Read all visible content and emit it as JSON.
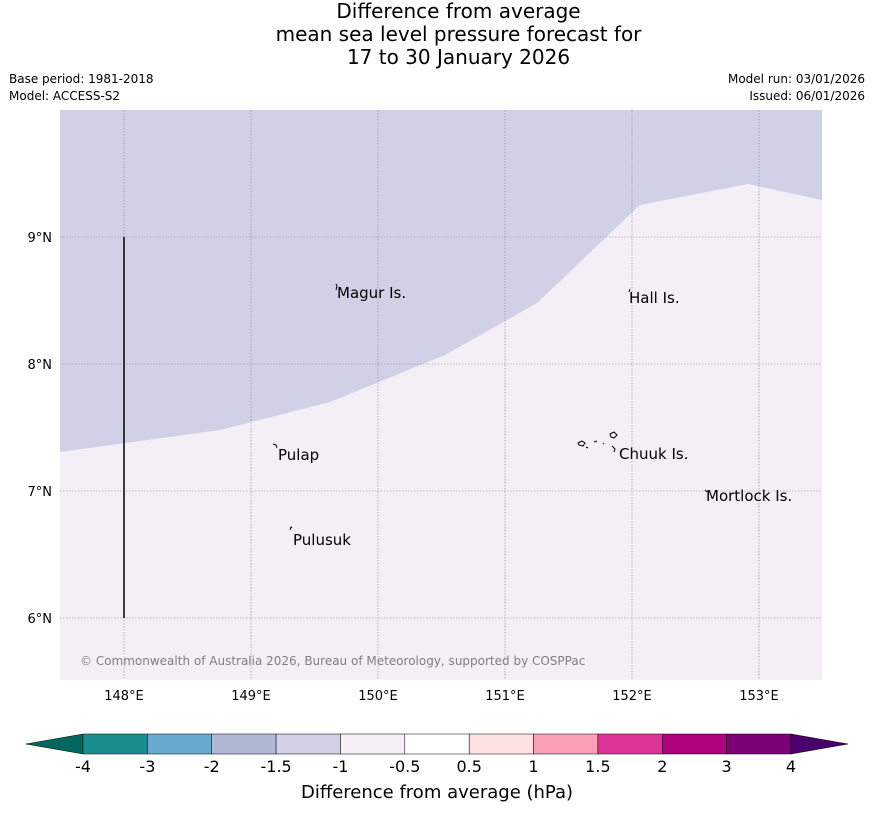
{
  "header": {
    "title_line1": "Difference from average",
    "title_line2": "mean sea level pressure forecast for",
    "title_line3": "17 to 30 January 2026",
    "base_period": "Base period: 1981-2018",
    "model": "Model: ACCESS-S2",
    "model_run": "Model run: 03/01/2026",
    "issued": "Issued: 06/01/2026"
  },
  "map": {
    "lon_labels": [
      "148°E",
      "149°E",
      "150°E",
      "151°E",
      "152°E",
      "153°E"
    ],
    "lat_labels": [
      "9°N",
      "8°N",
      "7°N",
      "6°N"
    ],
    "places": [
      {
        "name": "Magur Is."
      },
      {
        "name": "Hall Is."
      },
      {
        "name": "Pulap"
      },
      {
        "name": "Chuuk Is."
      },
      {
        "name": "Mortlock Is."
      },
      {
        "name": "Pulusuk"
      }
    ],
    "copyright": "© Commonwealth of Australia 2026, Bureau of Meteorology, supported by COSPPac",
    "region_colors": {
      "upper": "#d0d1e6",
      "lower": "#f4eef6"
    }
  },
  "colorbar": {
    "title": "Difference from average (hPa)",
    "tick_labels": [
      "-4",
      "-3",
      "-2",
      "-1.5",
      "-1",
      "-0.5",
      "0.5",
      "1",
      "1.5",
      "2",
      "3",
      "4"
    ],
    "colors": [
      "#1a8f8f",
      "#67a9cf",
      "#b0b8d4",
      "#d0d1e6",
      "#f4eef6",
      "#ffffff",
      "#fde0e0",
      "#fa9fb5",
      "#dd3497",
      "#ae017e",
      "#7a0177"
    ],
    "under_color": "#01665e",
    "over_color": "#49006a"
  }
}
